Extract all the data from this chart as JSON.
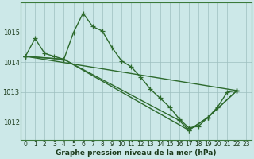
{
  "title": "Graphe pression niveau de la mer (hPa)",
  "bg_color": "#cce8e8",
  "line_color": "#2d6a2d",
  "xlim_min": -0.5,
  "xlim_max": 23.5,
  "ylim_min": 1011.4,
  "ylim_max": 1016.0,
  "yticks": [
    1012,
    1013,
    1014,
    1015
  ],
  "xticks": [
    0,
    1,
    2,
    3,
    4,
    5,
    6,
    7,
    8,
    9,
    10,
    11,
    12,
    13,
    14,
    15,
    16,
    17,
    18,
    19,
    20,
    21,
    22,
    23
  ],
  "series1_x": [
    0,
    1,
    2,
    3,
    4,
    5,
    6,
    7,
    8,
    9,
    10,
    11,
    12,
    13,
    14,
    15,
    16,
    17,
    18,
    19,
    20,
    21,
    22
  ],
  "series1_y": [
    1014.2,
    1014.8,
    1014.3,
    1014.2,
    1014.1,
    1015.0,
    1015.65,
    1015.2,
    1015.05,
    1014.5,
    1014.05,
    1013.85,
    1013.5,
    1013.1,
    1012.8,
    1012.5,
    1012.1,
    1011.8,
    1011.85,
    1012.15,
    1012.5,
    1013.0,
    1013.05
  ],
  "series2_x": [
    0,
    22
  ],
  "series2_y": [
    1014.2,
    1013.05
  ],
  "series3_x": [
    0,
    4,
    17,
    19,
    22
  ],
  "series3_y": [
    1014.2,
    1014.1,
    1011.72,
    1012.15,
    1013.05
  ],
  "series4_x": [
    0,
    4,
    16,
    17,
    19,
    22
  ],
  "series4_y": [
    1014.2,
    1014.1,
    1012.05,
    1011.72,
    1012.15,
    1013.05
  ],
  "linewidth": 1.0,
  "markersize": 4.0,
  "tick_fontsize": 5.5,
  "label_fontsize": 6.5
}
